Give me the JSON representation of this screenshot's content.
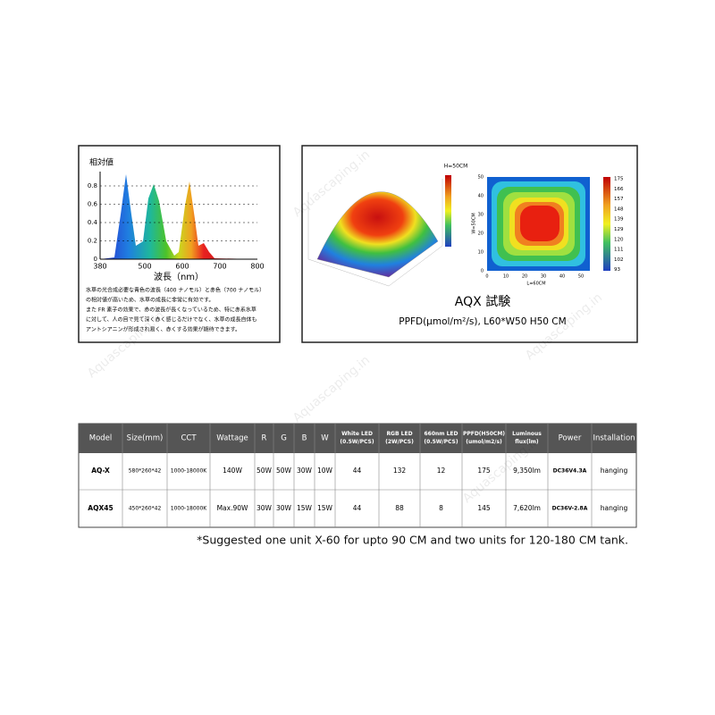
{
  "spectrum": {
    "ylabel": "相対値",
    "yticks": [
      "0",
      "0.2",
      "0.4",
      "0.6",
      "0.8"
    ],
    "xticks": [
      "380",
      "500",
      "600",
      "700",
      "800"
    ],
    "xlabel": "波長（nm）",
    "text": [
      "水草の光合成必要な青色の波長（400 ナノモル）と赤色（700 ナノモル）",
      "の相対値が高いため、水草の成長に非常に有効です。",
      "また FR 素子の効果で、赤の波長が長くなっているため、特に赤系水草",
      "に対して、人の目で見て深く赤く感じるだけでなく、水草の成長自体も",
      "アントシアニンが形成され易く、赤くする効果が期待できます。"
    ]
  },
  "test": {
    "title": "AQX 試験",
    "subtitle": "PPFD(μmol/m²/s), L60*W50 H50 CM",
    "dome_label": "H=50CM",
    "heatmap_x": "L=60CM",
    "heatmap_y": "W=50CM",
    "heatmap_xticks": [
      "0",
      "10",
      "20",
      "30",
      "40",
      "50"
    ],
    "heatmap_yticks": [
      "0",
      "10",
      "20",
      "30",
      "40",
      "50"
    ],
    "heatmap_scale": [
      "175",
      "166",
      "157",
      "148",
      "139",
      "129",
      "120",
      "111",
      "102",
      "93"
    ]
  },
  "table": {
    "headers": [
      [
        "Model"
      ],
      [
        "Size(mm)"
      ],
      [
        "CCT"
      ],
      [
        "Wattage"
      ],
      [
        "R"
      ],
      [
        "G"
      ],
      [
        "B"
      ],
      [
        "W"
      ],
      [
        "White LED",
        "(0.5W/PCS)"
      ],
      [
        "RGB LED",
        "(2W/PCS)"
      ],
      [
        "660nm LED",
        "(0.5W/PCS)"
      ],
      [
        "PPFD(H50CM)",
        "(umol/m2/s)"
      ],
      [
        "Luminous",
        "flux(lm)"
      ],
      [
        "Power"
      ],
      [
        "Installation"
      ]
    ],
    "rows": [
      [
        "AQ-X",
        "580*260*42",
        "1000-18000K",
        "140W",
        "50W",
        "50W",
        "30W",
        "10W",
        "44",
        "132",
        "12",
        "175",
        "9,350lm",
        "DC36V4.3A",
        "hanging"
      ],
      [
        "AQX45",
        "450*260*42",
        "1000-18000K",
        "Max.90W",
        "30W",
        "30W",
        "15W",
        "15W",
        "44",
        "88",
        "8",
        "145",
        "7,620lm",
        "DC36V-2.8A",
        "hanging"
      ]
    ]
  },
  "footnote": "*Suggested one unit X-60  for upto 90 CM and two units for 120-180 CM tank.",
  "watermark": "Aquascaping.in"
}
